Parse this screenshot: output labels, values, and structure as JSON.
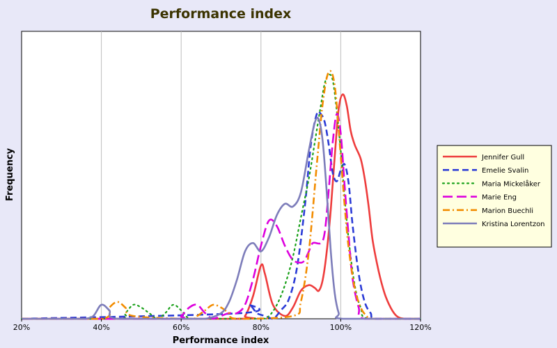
{
  "chart_data": {
    "type": "line",
    "title": "Performance index",
    "xlabel": "Performance index",
    "ylabel": "Frequency",
    "xlim": [
      0.2,
      1.2
    ],
    "ylim": [
      0,
      1.0
    ],
    "x_ticks": [
      "20%",
      "40%",
      "60%",
      "80%",
      "100%",
      "120%"
    ],
    "x_tick_values": [
      0.2,
      0.4,
      0.6,
      0.8,
      1.0,
      1.2
    ],
    "grid": {
      "vertical": true,
      "horizontal": false
    },
    "legend_position": "right",
    "series": [
      {
        "name": "Jennifer Gull",
        "color": "#ee3c3c",
        "dash": "solid",
        "x": [
          0.74,
          0.76,
          0.78,
          0.8,
          0.81,
          0.83,
          0.86,
          0.88,
          0.9,
          0.92,
          0.935,
          0.945,
          0.955,
          0.965,
          0.975,
          0.985,
          0.995,
          1.005,
          1.015,
          1.025,
          1.035,
          1.05,
          1.06,
          1.07,
          1.08,
          1.095,
          1.11,
          1.125,
          1.14,
          1.16
        ],
        "y": [
          0.0,
          0.01,
          0.08,
          0.19,
          0.16,
          0.05,
          0.01,
          0.04,
          0.1,
          0.12,
          0.11,
          0.1,
          0.14,
          0.24,
          0.39,
          0.58,
          0.75,
          0.8,
          0.76,
          0.67,
          0.62,
          0.57,
          0.5,
          0.4,
          0.28,
          0.17,
          0.09,
          0.04,
          0.01,
          0.0
        ]
      },
      {
        "name": "Emelie Svalin",
        "color": "#2b3bd6",
        "dash": "dashed",
        "x": [
          0.75,
          0.77,
          0.79,
          0.81,
          0.83,
          0.85,
          0.87,
          0.89,
          0.91,
          0.925,
          0.94,
          0.95,
          0.96,
          0.97,
          0.98,
          0.99,
          1.0,
          1.01,
          1.02,
          1.03,
          1.045,
          1.06,
          1.075,
          1.09
        ],
        "y": [
          0.02,
          0.05,
          0.02,
          0.01,
          0.0,
          0.03,
          0.07,
          0.18,
          0.4,
          0.62,
          0.73,
          0.73,
          0.7,
          0.62,
          0.52,
          0.49,
          0.53,
          0.55,
          0.48,
          0.33,
          0.16,
          0.06,
          0.02,
          0.0
        ]
      },
      {
        "name": "Maria Mickelåker",
        "color": "#18a018",
        "dash": "dotted",
        "x": [
          0.44,
          0.46,
          0.48,
          0.5,
          0.52,
          0.54,
          0.56,
          0.58,
          0.6,
          0.62,
          0.64,
          0.66,
          0.8,
          0.82,
          0.84,
          0.86,
          0.88,
          0.9,
          0.92,
          0.935,
          0.95,
          0.96,
          0.97,
          0.98,
          0.99,
          1.0,
          1.01,
          1.02,
          1.035,
          1.05,
          1.07
        ],
        "y": [
          0.0,
          0.02,
          0.05,
          0.04,
          0.02,
          0.0,
          0.02,
          0.05,
          0.03,
          0.0,
          0.0,
          0.0,
          0.0,
          0.01,
          0.05,
          0.12,
          0.22,
          0.36,
          0.5,
          0.63,
          0.76,
          0.84,
          0.87,
          0.85,
          0.74,
          0.6,
          0.43,
          0.28,
          0.12,
          0.04,
          0.0
        ]
      },
      {
        "name": "Marie Eng",
        "color": "#dd00dd",
        "dash": "longdash",
        "x": [
          0.58,
          0.6,
          0.62,
          0.64,
          0.66,
          0.68,
          0.7,
          0.72,
          0.74,
          0.76,
          0.78,
          0.8,
          0.82,
          0.84,
          0.86,
          0.88,
          0.9,
          0.91,
          0.92,
          0.93,
          0.95,
          0.96,
          0.97,
          0.98,
          0.99,
          1.0,
          1.01,
          1.02,
          1.03,
          1.045,
          1.06
        ],
        "y": [
          0.0,
          0.01,
          0.04,
          0.05,
          0.02,
          0.0,
          0.01,
          0.02,
          0.02,
          0.05,
          0.14,
          0.26,
          0.35,
          0.33,
          0.26,
          0.21,
          0.2,
          0.21,
          0.24,
          0.27,
          0.27,
          0.31,
          0.46,
          0.63,
          0.73,
          0.66,
          0.47,
          0.29,
          0.14,
          0.04,
          0.0
        ]
      },
      {
        "name": "Marion Buechli",
        "color": "#f28c00",
        "dash": "dashdot",
        "x": [
          0.4,
          0.42,
          0.44,
          0.46,
          0.48,
          0.62,
          0.64,
          0.66,
          0.68,
          0.7,
          0.72,
          0.74,
          0.88,
          0.9,
          0.92,
          0.94,
          0.955,
          0.97,
          0.985,
          1.0,
          1.01,
          1.02,
          1.035,
          1.05,
          1.065,
          1.08
        ],
        "y": [
          0.0,
          0.04,
          0.06,
          0.04,
          0.01,
          0.0,
          0.01,
          0.03,
          0.05,
          0.04,
          0.02,
          0.0,
          0.01,
          0.06,
          0.24,
          0.55,
          0.77,
          0.88,
          0.83,
          0.58,
          0.4,
          0.25,
          0.11,
          0.04,
          0.01,
          0.0
        ]
      },
      {
        "name": "Kristina Lorentzon",
        "color": "#7d7dba",
        "dash": "solid",
        "x": [
          0.34,
          0.36,
          0.38,
          0.4,
          0.42,
          0.44,
          0.62,
          0.66,
          0.7,
          0.72,
          0.74,
          0.76,
          0.78,
          0.8,
          0.82,
          0.84,
          0.86,
          0.88,
          0.9,
          0.92,
          0.935,
          0.945,
          0.955,
          0.965,
          0.975,
          0.985,
          0.995,
          1.005
        ],
        "y": [
          0.0,
          0.0,
          0.01,
          0.05,
          0.03,
          0.0,
          0.0,
          0.0,
          0.02,
          0.06,
          0.14,
          0.24,
          0.27,
          0.24,
          0.29,
          0.37,
          0.41,
          0.4,
          0.45,
          0.6,
          0.7,
          0.71,
          0.63,
          0.45,
          0.24,
          0.09,
          0.02,
          0.0
        ]
      }
    ]
  }
}
